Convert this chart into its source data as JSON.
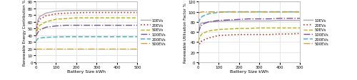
{
  "x": [
    0,
    10,
    20,
    50,
    100,
    150,
    200,
    250,
    300,
    350,
    400,
    450,
    500
  ],
  "rec_curves": {
    "10EVs": [
      42,
      62,
      68,
      73,
      76,
      77,
      77,
      77,
      77,
      77,
      77,
      77,
      77
    ],
    "20EVs": [
      42,
      58,
      64,
      69,
      72,
      73,
      73.5,
      74,
      74,
      74,
      74,
      74,
      74
    ],
    "50EVs": [
      39,
      50,
      55,
      60,
      64,
      65,
      66,
      66,
      66,
      66,
      66,
      66,
      66
    ],
    "100EVs": [
      38,
      44,
      48,
      52,
      54,
      55,
      55,
      55,
      55,
      55,
      55,
      55,
      55
    ],
    "200EVs": [
      31,
      35,
      36,
      37,
      37.5,
      38,
      38,
      38,
      38,
      38,
      38,
      38,
      38
    ],
    "500EVs": [
      19,
      19.5,
      19.5,
      19.5,
      19.5,
      19.5,
      19.5,
      19.5,
      19.5,
      19.5,
      19.5,
      19.5,
      19.5
    ]
  },
  "ruf_curves": {
    "10EVs": [
      57,
      76,
      78,
      80,
      81,
      82,
      82,
      82,
      82,
      82,
      83,
      83,
      83
    ],
    "20EVs": [
      30,
      40,
      43,
      48,
      53,
      54,
      55,
      55,
      55,
      55,
      56,
      56,
      57
    ],
    "50EVs": [
      42,
      52,
      57,
      62,
      65,
      66,
      67,
      67,
      68,
      68,
      68,
      68,
      68
    ],
    "100EVs": [
      58,
      70,
      75,
      80,
      83,
      84,
      85,
      86,
      86,
      86,
      87,
      87,
      87
    ],
    "200EVs": [
      78,
      87,
      91,
      96,
      99,
      100,
      100,
      100,
      100,
      100,
      100,
      100,
      100
    ],
    "500EVs": [
      97,
      99,
      100,
      100,
      100,
      100,
      100,
      100,
      100,
      100,
      100,
      100,
      100
    ]
  },
  "line_styles": {
    "10EVs": {
      "color": "#aaaaaa",
      "linestyle": "-",
      "linewidth": 1.0
    },
    "20EVs": {
      "color": "#c0392b",
      "linestyle": ":",
      "linewidth": 1.2
    },
    "50EVs": {
      "color": "#b8b000",
      "linestyle": "--",
      "linewidth": 1.0
    },
    "100EVs": {
      "color": "#7b4f9e",
      "linestyle": "-.",
      "linewidth": 1.0
    },
    "200EVs": {
      "color": "#5bb8c4",
      "linestyle": "--",
      "linewidth": 1.2
    },
    "500EVs": {
      "color": "#d4a030",
      "linestyle": "-.",
      "linewidth": 1.0
    }
  },
  "xlabel": "Battery Size kWh",
  "ylabel_left": "Renewable Energy Contribution %",
  "ylabel_right": "Renewable Utilisation Factor %",
  "ylim_left": [
    0,
    90
  ],
  "ylim_right": [
    0,
    120
  ],
  "yticks_left": [
    0,
    10,
    20,
    30,
    40,
    50,
    60,
    70,
    80,
    90
  ],
  "yticks_right": [
    0,
    20,
    40,
    60,
    80,
    100,
    120
  ],
  "xlim": [
    0,
    500
  ],
  "xticks": [
    0,
    100,
    200,
    300,
    400,
    500
  ],
  "legend_labels": [
    "10EVs",
    "20EVs",
    "50EVs",
    "100EVs",
    "200EVs",
    "500EVs"
  ],
  "background_color": "#ffffff",
  "grid_color": "#dddddd"
}
